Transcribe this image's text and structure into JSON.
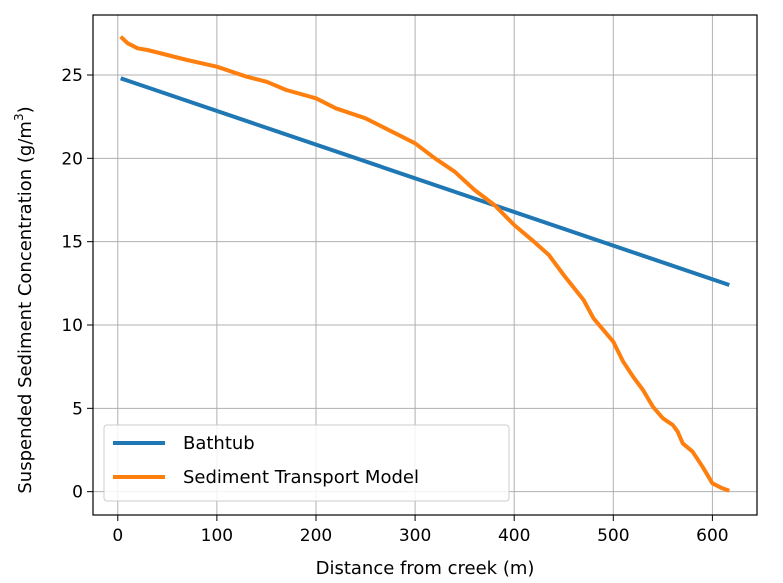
{
  "chart_data": {
    "type": "line",
    "xlabel": "Distance from creek (m)",
    "ylabel_main": "Suspended Sediment Concentration (g/m",
    "ylabel_sup": "3",
    "ylabel_close": ")",
    "xlim": [
      -25,
      645
    ],
    "ylim": [
      -1.4,
      28.6
    ],
    "x_ticks": [
      0,
      100,
      200,
      300,
      400,
      500,
      600
    ],
    "y_ticks": [
      0,
      5,
      10,
      15,
      20,
      25
    ],
    "grid": true,
    "legend_position": "lower-left",
    "series": [
      {
        "name": "Bathtub",
        "color": "#1f77b4",
        "x": [
          3,
          617
        ],
        "y": [
          24.8,
          12.4
        ]
      },
      {
        "name": "Sediment Transport Model",
        "color": "#ff7f0e",
        "x": [
          3,
          10,
          20,
          30,
          50,
          70,
          100,
          130,
          150,
          170,
          200,
          220,
          250,
          280,
          300,
          320,
          340,
          360,
          380,
          400,
          420,
          435,
          450,
          470,
          480,
          500,
          510,
          520,
          530,
          540,
          550,
          560,
          565,
          570,
          580,
          590,
          600,
          610,
          617
        ],
        "y": [
          27.3,
          26.9,
          26.6,
          26.5,
          26.2,
          25.9,
          25.5,
          24.9,
          24.6,
          24.1,
          23.6,
          23.0,
          22.4,
          21.5,
          20.9,
          20.0,
          19.2,
          18.1,
          17.2,
          16.0,
          15.0,
          14.2,
          13.0,
          11.5,
          10.4,
          9.0,
          7.8,
          6.9,
          6.1,
          5.1,
          4.4,
          4.0,
          3.6,
          2.9,
          2.4,
          1.5,
          0.5,
          0.2,
          0.05
        ]
      }
    ]
  }
}
